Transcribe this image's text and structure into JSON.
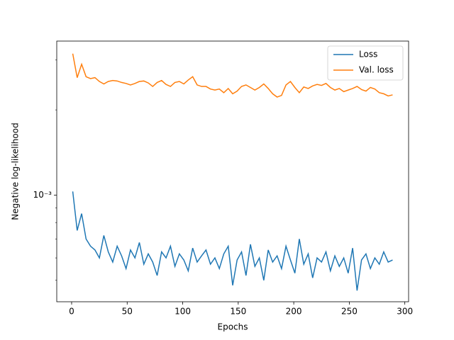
{
  "chart_data": {
    "type": "line",
    "xlabel": "Epochs",
    "ylabel": "Negative log-likelihood",
    "x": [
      1,
      5,
      9,
      13,
      17,
      21,
      25,
      29,
      33,
      37,
      41,
      45,
      49,
      53,
      57,
      61,
      65,
      69,
      73,
      77,
      81,
      85,
      89,
      93,
      97,
      101,
      105,
      109,
      113,
      117,
      121,
      125,
      129,
      133,
      137,
      141,
      145,
      149,
      153,
      157,
      161,
      165,
      169,
      173,
      177,
      181,
      185,
      189,
      193,
      197,
      201,
      205,
      209,
      213,
      217,
      221,
      225,
      229,
      233,
      237,
      241,
      245,
      249,
      253,
      257,
      261,
      265,
      269,
      273,
      277,
      281,
      285,
      289
    ],
    "series": [
      {
        "name": "Loss",
        "color": "#1f77b4",
        "values": [
          0.00103,
          0.00075,
          0.00086,
          0.0007,
          0.00066,
          0.00064,
          0.0006,
          0.00072,
          0.00063,
          0.00058,
          0.00066,
          0.00061,
          0.00055,
          0.00064,
          0.0006,
          0.00068,
          0.00057,
          0.00062,
          0.00058,
          0.00052,
          0.00063,
          0.0006,
          0.00066,
          0.00056,
          0.00062,
          0.00059,
          0.00054,
          0.00065,
          0.00058,
          0.00061,
          0.00064,
          0.00057,
          0.0006,
          0.00055,
          0.00062,
          0.00066,
          0.00048,
          0.00059,
          0.00063,
          0.00052,
          0.00067,
          0.00056,
          0.0006,
          0.0005,
          0.00064,
          0.00058,
          0.00061,
          0.00055,
          0.00066,
          0.00059,
          0.00053,
          0.0007,
          0.00057,
          0.00062,
          0.00051,
          0.0006,
          0.00058,
          0.00063,
          0.00054,
          0.00061,
          0.00056,
          0.0006,
          0.00053,
          0.00065,
          0.00046,
          0.00059,
          0.00062,
          0.00055,
          0.0006,
          0.00057,
          0.00063,
          0.00058,
          0.00059
        ]
      },
      {
        "name": "Val. loss",
        "color": "#ff7f0e",
        "values": [
          0.00316,
          0.0026,
          0.0029,
          0.00262,
          0.00258,
          0.0026,
          0.00252,
          0.00247,
          0.00252,
          0.00254,
          0.00253,
          0.0025,
          0.00248,
          0.00245,
          0.00248,
          0.00252,
          0.00253,
          0.00249,
          0.00242,
          0.0025,
          0.00254,
          0.00246,
          0.00242,
          0.0025,
          0.00252,
          0.00247,
          0.00255,
          0.00262,
          0.00245,
          0.00242,
          0.00242,
          0.00237,
          0.00235,
          0.00237,
          0.0023,
          0.00238,
          0.00228,
          0.00233,
          0.00242,
          0.00245,
          0.0024,
          0.00235,
          0.0024,
          0.00247,
          0.00238,
          0.00228,
          0.00222,
          0.00225,
          0.00245,
          0.00252,
          0.0024,
          0.0023,
          0.00241,
          0.00238,
          0.00243,
          0.00246,
          0.00244,
          0.00248,
          0.0024,
          0.00235,
          0.00238,
          0.00232,
          0.00235,
          0.00238,
          0.00242,
          0.00236,
          0.00233,
          0.0024,
          0.00237,
          0.0023,
          0.00228,
          0.00224,
          0.00226
        ]
      }
    ],
    "xlim": [
      -13.4,
      303.4
    ],
    "xticks": [
      0,
      50,
      100,
      150,
      200,
      250,
      300
    ],
    "ylim": [
      0.00042,
      0.0035
    ],
    "yscale": "log",
    "yticks": [
      {
        "value": 0.001,
        "label": "10⁻³"
      }
    ],
    "minor_yticks": [
      0.0005,
      0.0006,
      0.0007,
      0.0008,
      0.0009,
      0.002,
      0.003
    ],
    "legend": "upper right"
  }
}
